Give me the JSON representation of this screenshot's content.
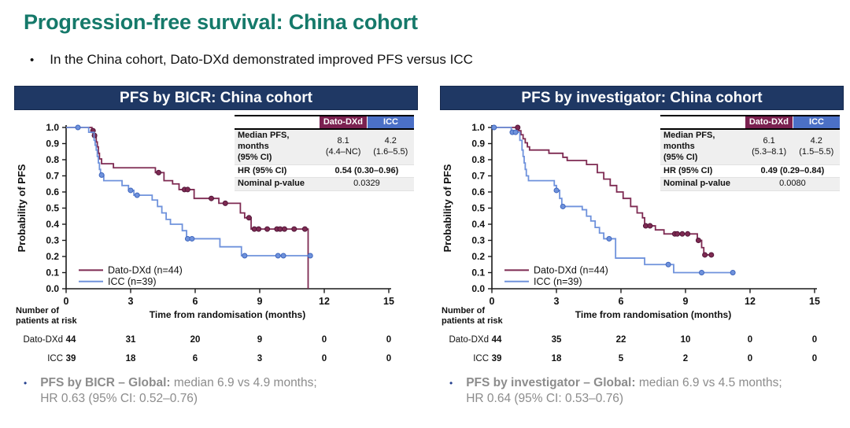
{
  "page": {
    "title": "Progression-free survival: China cohort",
    "intro_bullet": "In the China cohort, Dato-DXd demonstrated improved PFS versus ICC"
  },
  "colors": {
    "title_teal": "#15796A",
    "header_navy": "#1F3864",
    "dato_maroon": "#7B2150",
    "icc_blue_header": "#4B70C6",
    "dato_line": "#7E2A52",
    "icc_line": "#6F92DC",
    "footnote_gray": "#8C8C8C"
  },
  "chart_data": [
    {
      "type": "line",
      "subtype": "kaplan-meier",
      "panel_title": "PFS by BICR: China cohort",
      "xlabel": "Time from randomisation (months)",
      "ylabel": "Probability of PFS",
      "xlim": [
        0,
        15
      ],
      "xticks": [
        0,
        3,
        6,
        9,
        12,
        15
      ],
      "ylim": [
        0,
        1
      ],
      "ytick_step": 0.1,
      "grid": false,
      "legend_position": "bottom-left",
      "series": [
        {
          "name": "Dato-DXd (n=44)",
          "color": "#7E2A52",
          "edge": "#53173A",
          "steps": [
            [
              0,
              1.0
            ],
            [
              1.2,
              0.98
            ],
            [
              1.3,
              0.95
            ],
            [
              1.4,
              0.91
            ],
            [
              1.45,
              0.88
            ],
            [
              1.5,
              0.84
            ],
            [
              1.55,
              0.805
            ],
            [
              1.65,
              0.775
            ],
            [
              2.2,
              0.75
            ],
            [
              4.15,
              0.72
            ],
            [
              4.55,
              0.67
            ],
            [
              4.95,
              0.65
            ],
            [
              5.25,
              0.615
            ],
            [
              5.95,
              0.56
            ],
            [
              7.1,
              0.53
            ],
            [
              8.1,
              0.47
            ],
            [
              8.3,
              0.44
            ],
            [
              8.6,
              0.37
            ]
          ],
          "censors": [
            [
              1.25,
              0.98
            ],
            [
              1.32,
              0.95
            ],
            [
              4.3,
              0.72
            ],
            [
              5.5,
              0.615
            ],
            [
              5.65,
              0.615
            ],
            [
              6.75,
              0.56
            ],
            [
              7.4,
              0.53
            ],
            [
              8.5,
              0.44
            ],
            [
              8.75,
              0.37
            ],
            [
              8.95,
              0.37
            ],
            [
              9.35,
              0.37
            ],
            [
              9.8,
              0.37
            ],
            [
              9.95,
              0.37
            ],
            [
              10.15,
              0.37
            ],
            [
              10.6,
              0.37
            ],
            [
              11.1,
              0.37
            ]
          ],
          "end_t": 11.25,
          "drop_to_zero": true
        },
        {
          "name": "ICC (n=39)",
          "color": "#6F92DC",
          "edge": "#3F66BD",
          "steps": [
            [
              0,
              1.0
            ],
            [
              1.05,
              0.97
            ],
            [
              1.3,
              0.92
            ],
            [
              1.35,
              0.89
            ],
            [
              1.4,
              0.86
            ],
            [
              1.45,
              0.82
            ],
            [
              1.5,
              0.78
            ],
            [
              1.55,
              0.74
            ],
            [
              1.6,
              0.705
            ],
            [
              1.75,
              0.67
            ],
            [
              2.6,
              0.64
            ],
            [
              2.9,
              0.61
            ],
            [
              3.15,
              0.58
            ],
            [
              4.0,
              0.55
            ],
            [
              4.25,
              0.51
            ],
            [
              4.45,
              0.47
            ],
            [
              4.65,
              0.43
            ],
            [
              4.85,
              0.4
            ],
            [
              5.4,
              0.36
            ],
            [
              5.6,
              0.31
            ],
            [
              7.15,
              0.26
            ],
            [
              8.15,
              0.205
            ]
          ],
          "censors": [
            [
              0.55,
              1.0
            ],
            [
              1.65,
              0.705
            ],
            [
              3.0,
              0.61
            ],
            [
              3.3,
              0.58
            ],
            [
              5.65,
              0.31
            ],
            [
              5.85,
              0.31
            ],
            [
              8.3,
              0.205
            ],
            [
              9.85,
              0.205
            ],
            [
              10.1,
              0.205
            ],
            [
              11.35,
              0.205
            ]
          ],
          "end_t": 11.35,
          "drop_to_zero": false
        }
      ],
      "risk_table": {
        "header_line1": "Number of",
        "header_line2": "patients at risk",
        "times": [
          0,
          3,
          6,
          9,
          12,
          15
        ],
        "rows": [
          {
            "label": "Dato-DXd",
            "counts": [
              44,
              31,
              20,
              9,
              0,
              0
            ]
          },
          {
            "label": "ICC",
            "counts": [
              39,
              18,
              6,
              3,
              0,
              0
            ]
          }
        ]
      },
      "stats": {
        "col1": "Dato-DXd",
        "col2": "ICC",
        "median_label": "Median PFS, months",
        "ci_label": "(95% CI)",
        "median1": "8.1",
        "ci1": "(4.4–NC)",
        "median2": "4.2",
        "ci2": "(1.6–5.5)",
        "hr_label": "HR (95% CI)",
        "hr_value": "0.54 (0.30–0.96)",
        "p_label": "Nominal p-value",
        "p_value": "0.0329"
      }
    },
    {
      "type": "line",
      "subtype": "kaplan-meier",
      "panel_title": "PFS by investigator: China cohort",
      "xlabel": "Time from randomisation (months)",
      "ylabel": "Probability of PFS",
      "xlim": [
        0,
        15
      ],
      "xticks": [
        0,
        3,
        6,
        9,
        12,
        15
      ],
      "ylim": [
        0,
        1
      ],
      "ytick_step": 0.1,
      "grid": false,
      "legend_position": "bottom-left",
      "series": [
        {
          "name": "Dato-DXd (n=44)",
          "color": "#7E2A52",
          "edge": "#53173A",
          "steps": [
            [
              0,
              1.0
            ],
            [
              1.25,
              0.98
            ],
            [
              1.35,
              0.955
            ],
            [
              1.45,
              0.93
            ],
            [
              1.55,
              0.905
            ],
            [
              1.65,
              0.88
            ],
            [
              1.75,
              0.86
            ],
            [
              2.65,
              0.84
            ],
            [
              3.3,
              0.815
            ],
            [
              3.5,
              0.795
            ],
            [
              4.4,
              0.77
            ],
            [
              4.9,
              0.72
            ],
            [
              5.2,
              0.68
            ],
            [
              5.5,
              0.64
            ],
            [
              5.8,
              0.6
            ],
            [
              6.1,
              0.56
            ],
            [
              6.45,
              0.51
            ],
            [
              6.75,
              0.47
            ],
            [
              7.0,
              0.44
            ],
            [
              7.1,
              0.39
            ],
            [
              7.6,
              0.365
            ],
            [
              8.0,
              0.34
            ],
            [
              9.55,
              0.3
            ],
            [
              9.75,
              0.255
            ],
            [
              9.85,
              0.21
            ]
          ],
          "censors": [
            [
              1.2,
              1.0
            ],
            [
              7.15,
              0.39
            ],
            [
              7.35,
              0.39
            ],
            [
              8.5,
              0.34
            ],
            [
              8.62,
              0.34
            ],
            [
              8.85,
              0.34
            ],
            [
              9.1,
              0.34
            ],
            [
              9.6,
              0.3
            ],
            [
              9.9,
              0.21
            ],
            [
              10.2,
              0.21
            ]
          ],
          "end_t": 10.25,
          "drop_to_zero": false
        },
        {
          "name": "ICC (n=39)",
          "color": "#6F92DC",
          "edge": "#3F66BD",
          "steps": [
            [
              0,
              1.0
            ],
            [
              0.9,
              0.97
            ],
            [
              1.3,
              0.92
            ],
            [
              1.4,
              0.86
            ],
            [
              1.45,
              0.82
            ],
            [
              1.5,
              0.78
            ],
            [
              1.55,
              0.74
            ],
            [
              1.6,
              0.7
            ],
            [
              1.7,
              0.67
            ],
            [
              2.9,
              0.64
            ],
            [
              3.0,
              0.61
            ],
            [
              3.15,
              0.56
            ],
            [
              3.25,
              0.51
            ],
            [
              4.2,
              0.49
            ],
            [
              4.4,
              0.45
            ],
            [
              4.6,
              0.42
            ],
            [
              4.8,
              0.38
            ],
            [
              5.0,
              0.345
            ],
            [
              5.2,
              0.31
            ],
            [
              5.75,
              0.19
            ],
            [
              7.1,
              0.15
            ],
            [
              8.45,
              0.1
            ]
          ],
          "censors": [
            [
              0.1,
              1.0
            ],
            [
              0.95,
              0.97
            ],
            [
              1.1,
              0.97
            ],
            [
              3.0,
              0.61
            ],
            [
              3.3,
              0.51
            ],
            [
              5.45,
              0.31
            ],
            [
              8.2,
              0.15
            ],
            [
              9.75,
              0.1
            ],
            [
              11.2,
              0.1
            ]
          ],
          "end_t": 11.2,
          "drop_to_zero": false
        }
      ],
      "risk_table": {
        "header_line1": "Number of",
        "header_line2": "patients at risk",
        "times": [
          0,
          3,
          6,
          9,
          12,
          15
        ],
        "rows": [
          {
            "label": "Dato-DXd",
            "counts": [
              44,
              35,
              22,
              10,
              0,
              0
            ]
          },
          {
            "label": "ICC",
            "counts": [
              39,
              18,
              5,
              2,
              0,
              0
            ]
          }
        ]
      },
      "stats": {
        "col1": "Dato-DXd",
        "col2": "ICC",
        "median_label": "Median PFS, months",
        "ci_label": "(95% CI)",
        "median1": "6.1",
        "ci1": "(5.3–8.1)",
        "median2": "4.2",
        "ci2": "(1.5–5.5)",
        "hr_label": "HR (95% CI)",
        "hr_value": "0.49 (0.29–0.84)",
        "p_label": "Nominal p-value",
        "p_value": "0.0080"
      }
    }
  ],
  "footnotes": [
    {
      "bold": "PFS by BICR – Global:",
      "line1": "median 6.9 vs 4.9 months;",
      "line2": "HR 0.63 (95% CI: 0.52–0.76)"
    },
    {
      "bold": "PFS by investigator – Global:",
      "line1": "median 6.9 vs 4.5 months;",
      "line2": "HR 0.64 (95% CI: 0.53–0.76)"
    }
  ]
}
